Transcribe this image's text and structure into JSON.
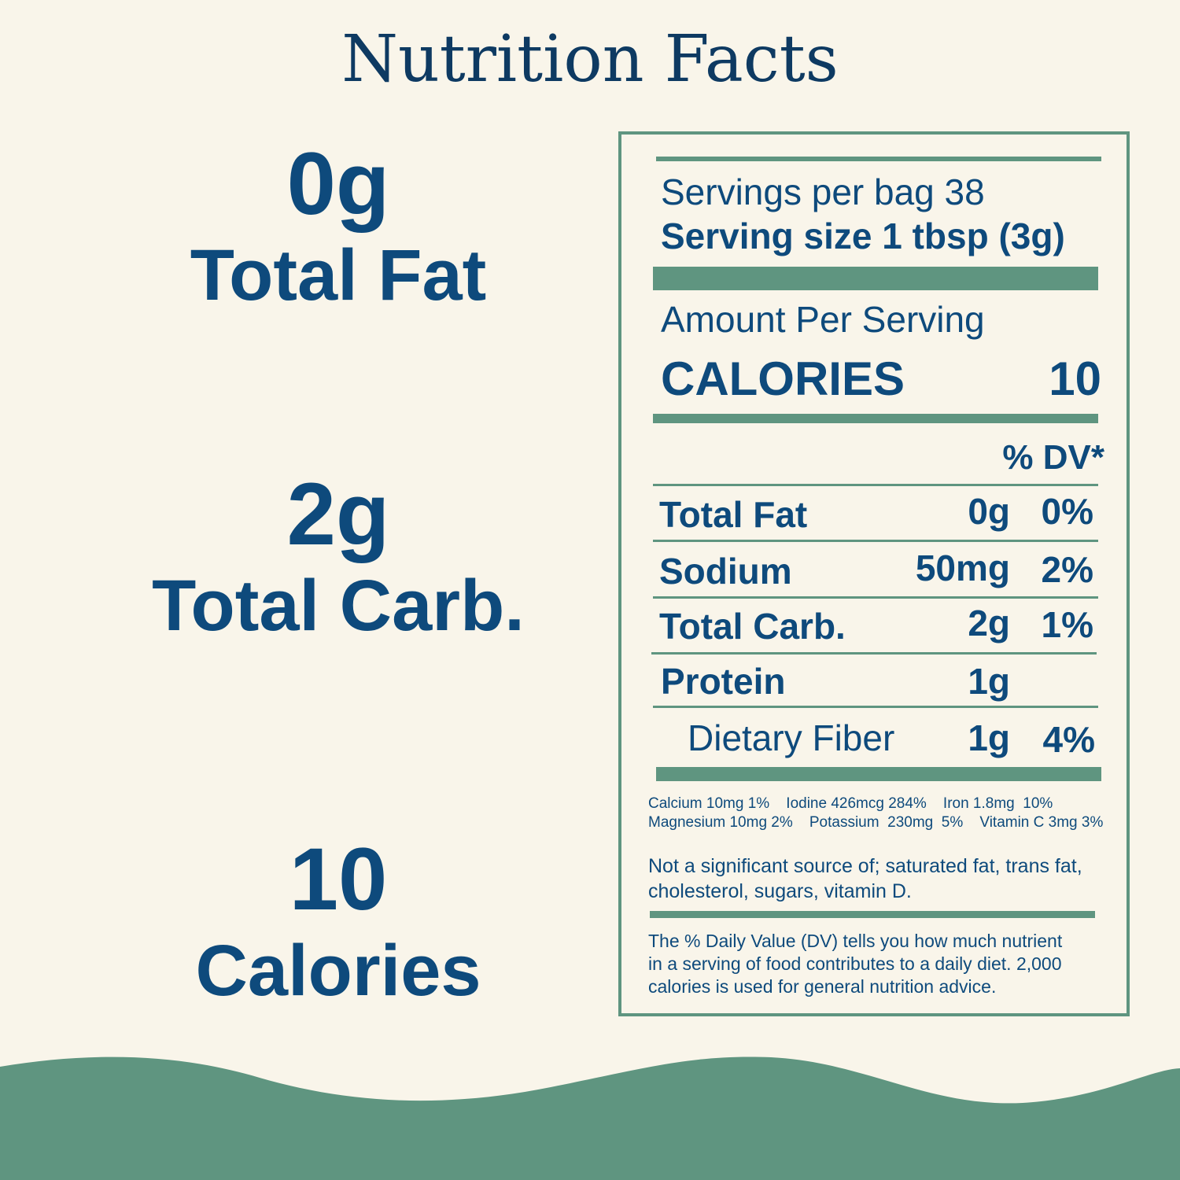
{
  "title": "Nutrition Facts",
  "highlights": [
    {
      "value": "0g",
      "label": "Total Fat"
    },
    {
      "value": "2g",
      "label": "Total Carb."
    },
    {
      "value": "10",
      "label": "Calories"
    }
  ],
  "label": {
    "servings": "Servings per bag 38",
    "serving_size": "Serving size 1 tbsp (3g)",
    "amount_per_serving": "Amount Per Serving",
    "calories_label": "CALORIES",
    "calories_value": "10",
    "dv_header": "% DV*",
    "rows": [
      {
        "name": "Total Fat",
        "amount": "0g",
        "dv": "0%"
      },
      {
        "name": "Sodium",
        "amount": "50mg",
        "dv": "2%"
      },
      {
        "name": "Total Carb.",
        "amount": "2g",
        "dv": "1%"
      },
      {
        "name": "Protein",
        "amount": "1g",
        "dv": ""
      },
      {
        "name": "Dietary Fiber",
        "amount": "1g",
        "dv": "4%"
      }
    ],
    "micros_line1": "Calcium 10mg 1%    Iodine 426mcg 284%    Iron 1.8mg  10%",
    "micros_line2": "Magnesium 10mg 2%    Potassium  230mg  5%    Vitamin C 3mg 3%",
    "not_significant_1": "Not a significant source of; saturated fat, trans fat,",
    "not_significant_2": "cholesterol, sugars, vitamin D.",
    "footnote_1": "The % Daily Value (DV) tells you how much nutrient",
    "footnote_2": "in a serving of food contributes to a daily diet. 2,000",
    "footnote_3": "calories is used for general nutrition advice."
  },
  "colors": {
    "accent": "#5f9580",
    "text": "#0e4a7c",
    "background": "#f9f5ea"
  }
}
